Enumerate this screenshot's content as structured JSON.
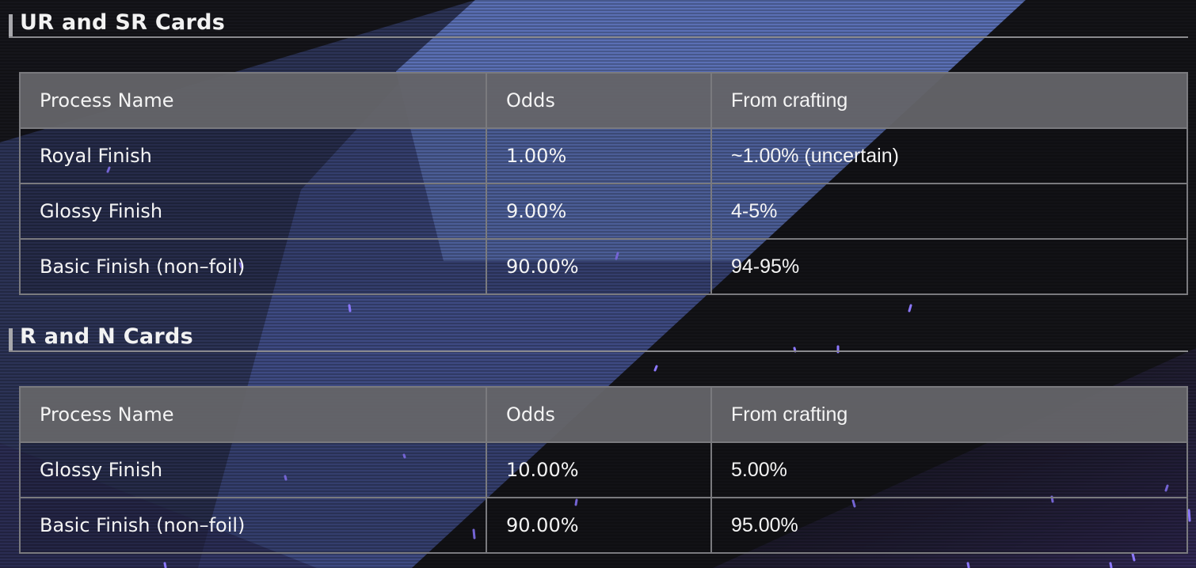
{
  "sections": [
    {
      "title": "UR and SR Cards",
      "headers": [
        "Process Name",
        "Odds",
        "From crafting"
      ],
      "rows": [
        [
          "Royal Finish",
          "1.00%",
          "~1.00% (uncertain)"
        ],
        [
          "Glossy Finish",
          "9.00%",
          "4-5%"
        ],
        [
          "Basic Finish (non–foil)",
          "90.00%",
          "94-95%"
        ]
      ]
    },
    {
      "title": "R and N Cards",
      "headers": [
        "Process Name",
        "Odds",
        "From crafting"
      ],
      "rows": [
        [
          "Glossy Finish",
          "10.00%",
          "5.00%"
        ],
        [
          "Basic Finish (non–foil)",
          "90.00%",
          "95.00%"
        ]
      ]
    }
  ],
  "colors": {
    "background": "#17171c",
    "stripe_blue": "#5a6fb4",
    "header_cell": "#646468",
    "particle": "#8c78ff"
  }
}
